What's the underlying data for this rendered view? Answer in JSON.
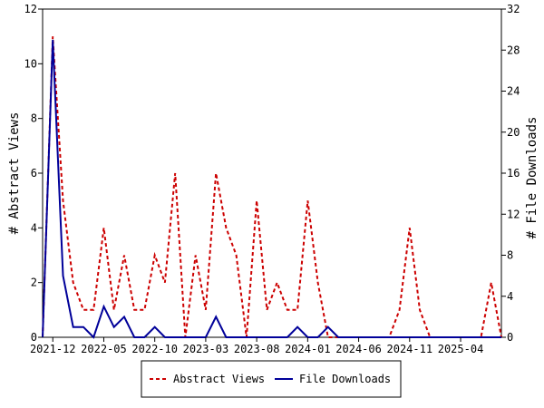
{
  "chart_data": {
    "type": "line",
    "title": "",
    "ylabel_left": "# Abstract Views",
    "ylabel_right": "# File Downloads",
    "ylim_left": [
      0,
      12
    ],
    "ylim_right": [
      0,
      32
    ],
    "yticks_left": [
      "0",
      "2",
      "4",
      "6",
      "8",
      "10",
      "12"
    ],
    "yticks_right": [
      "0",
      "4",
      "8",
      "12",
      "16",
      "20",
      "24",
      "28",
      "32"
    ],
    "xticks": [
      "2021-12",
      "2022-05",
      "2022-10",
      "2023-03",
      "2023-08",
      "2024-01",
      "2024-06",
      "2024-11",
      "2025-04"
    ],
    "x": [
      "2021-11",
      "2021-12",
      "2022-01",
      "2022-02",
      "2022-03",
      "2022-04",
      "2022-05",
      "2022-06",
      "2022-07",
      "2022-08",
      "2022-09",
      "2022-10",
      "2022-11",
      "2022-12",
      "2023-01",
      "2023-02",
      "2023-03",
      "2023-04",
      "2023-05",
      "2023-06",
      "2023-07",
      "2023-08",
      "2023-09",
      "2023-10",
      "2023-11",
      "2023-12",
      "2024-01",
      "2024-02",
      "2024-03",
      "2024-04",
      "2024-05",
      "2024-06",
      "2024-07",
      "2024-08",
      "2024-09",
      "2024-10",
      "2024-11",
      "2024-12",
      "2025-01",
      "2025-02",
      "2025-03",
      "2025-04",
      "2025-05",
      "2025-06",
      "2025-07",
      "2025-08"
    ],
    "series": [
      {
        "name": "Abstract Views",
        "axis": "left",
        "color": "#cc0000",
        "style": "dashed",
        "values": [
          0,
          11,
          5,
          2,
          1,
          1,
          4,
          1,
          3,
          1,
          1,
          3,
          2,
          6,
          0,
          3,
          1,
          6,
          4,
          3,
          0,
          5,
          1,
          2,
          1,
          1,
          5,
          2,
          0,
          0,
          0,
          0,
          0,
          0,
          0,
          1,
          4,
          1,
          0,
          0,
          0,
          0,
          0,
          0,
          2,
          0
        ]
      },
      {
        "name": "File Downloads",
        "axis": "right",
        "color": "#000099",
        "style": "solid",
        "values": [
          0,
          29,
          6,
          1,
          1,
          0,
          3,
          1,
          2,
          0,
          0,
          1,
          0,
          0,
          0,
          0,
          0,
          2,
          0,
          0,
          0,
          0,
          0,
          0,
          0,
          1,
          0,
          0,
          1,
          0,
          0,
          0,
          0,
          0,
          0,
          0,
          0,
          0,
          0,
          0,
          0,
          0,
          0,
          0,
          0,
          0
        ]
      }
    ],
    "grid": false,
    "legend_position": "bottom"
  }
}
